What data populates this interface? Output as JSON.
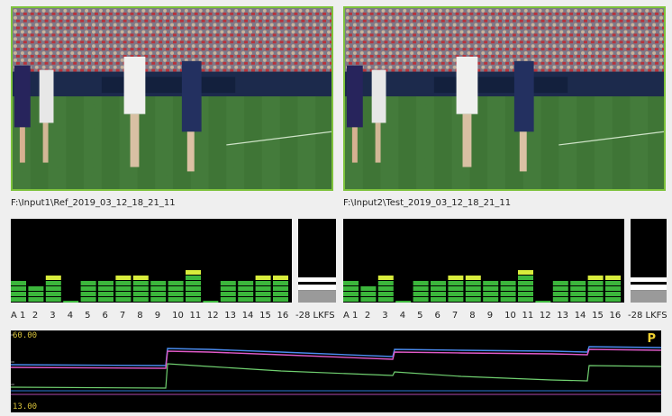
{
  "inputs": [
    {
      "path": "F:\\Input1\\Ref_2019_03_12_18_21_11",
      "lkfs_label": "-28 LKFS"
    },
    {
      "path": "F:\\Input2\\Test_2019_03_12_18_21_11",
      "lkfs_label": "-28 LKFS"
    }
  ],
  "channel_labels": [
    "A 1",
    "2",
    "3",
    "4",
    "5",
    "6",
    "7",
    "8",
    "9",
    "10",
    "11",
    "12",
    "13",
    "14",
    "15",
    "16"
  ],
  "channel_levels": [
    4,
    3,
    5,
    0,
    4,
    4,
    5,
    5,
    4,
    4,
    6,
    0,
    4,
    4,
    5,
    5
  ],
  "lkfs_level_fraction": 0.3,
  "graph": {
    "max_label": "60.00",
    "min_label": "13.00",
    "mode_label": "P"
  },
  "colors": {
    "frame_border": "#7ec23c",
    "meter_green": "#3cb63c",
    "meter_peak": "#d8ec3c",
    "trace_magenta": "#e05ac8",
    "trace_blue": "#4a8cf0",
    "trace_green": "#70d070"
  }
}
